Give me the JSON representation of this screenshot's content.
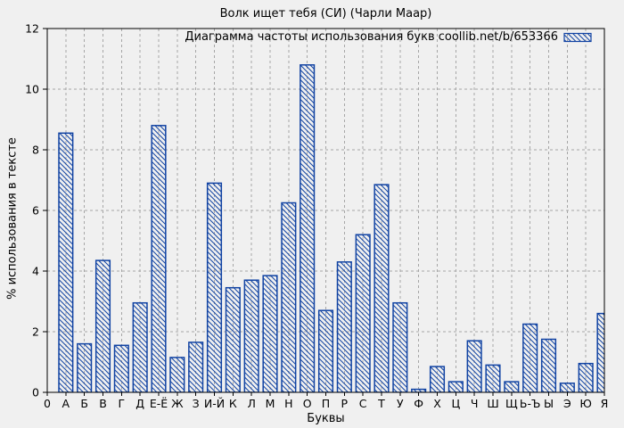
{
  "chart_data": {
    "type": "bar",
    "title": "Волк ищет тебя (СИ) (Чарли Маар)",
    "legend": "Диаграмма частоты использования букв coollib.net/b/653366",
    "legend_position": "top-right",
    "xlabel": "Буквы",
    "ylabel": "% использования в тексте",
    "origin_tick_label": "0",
    "categories": [
      "А",
      "Б",
      "В",
      "Г",
      "Д",
      "Е-Ё",
      "Ж",
      "З",
      "И-Й",
      "К",
      "Л",
      "М",
      "Н",
      "О",
      "П",
      "Р",
      "С",
      "Т",
      "У",
      "Ф",
      "Х",
      "Ц",
      "Ч",
      "Ш",
      "Щ",
      "Ь-Ъ",
      "Ы",
      "Э",
      "Ю",
      "Я"
    ],
    "values": [
      8.55,
      1.6,
      4.35,
      1.55,
      2.95,
      8.8,
      1.15,
      1.65,
      6.9,
      3.45,
      3.7,
      3.85,
      6.25,
      10.8,
      2.7,
      4.3,
      5.2,
      6.85,
      2.95,
      0.1,
      0.85,
      0.35,
      1.7,
      0.9,
      0.35,
      2.25,
      1.75,
      0.3,
      0.95,
      2.6
    ],
    "ylim": [
      0,
      12
    ],
    "yticks": [
      0,
      2,
      4,
      6,
      8,
      10,
      12
    ],
    "grid": true,
    "hatch_style": "backslash-diagonal",
    "colors": {
      "bar": "#1143a3",
      "grid": "#a6a6a6",
      "axis": "#000000",
      "text": "#000000",
      "background": "#f0f0f0"
    }
  }
}
